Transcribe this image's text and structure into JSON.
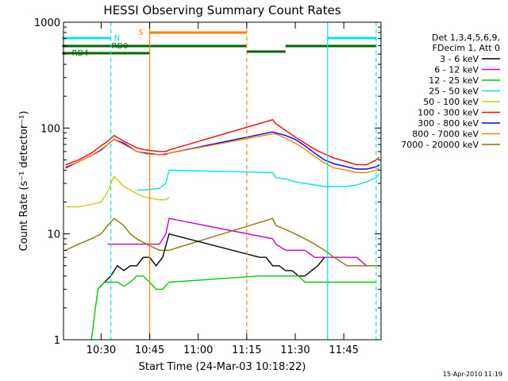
{
  "chart_data": {
    "type": "line",
    "title": "HESSI Observing Summary Count Rates",
    "xlabel": "Start Time (24-Mar-03 10:18:22)",
    "ylabel": "Count Rate (s⁻¹ detector⁻¹)",
    "y_scale": "log",
    "ylim": [
      1,
      1000
    ],
    "xlim": [
      "10:18:22",
      "11:56:30"
    ],
    "x_ticks": [
      "10:30",
      "10:45",
      "11:00",
      "11:15",
      "11:30",
      "11:45"
    ],
    "y_ticks": [
      "1",
      "10",
      "100",
      "1000"
    ],
    "legend_header": [
      "Det 1,3,4,5,6,9,",
      "FDecim 1, Att 0"
    ],
    "footer_date": "15-Apr-2010 11:19",
    "x_sample_times": [
      "10:19",
      "10:23",
      "10:27",
      "10:30",
      "10:32",
      "10:34",
      "10:37",
      "10:39",
      "10:41",
      "10:44",
      "10:48",
      "10:50",
      "10:51",
      "11:23",
      "11:24",
      "11:27",
      "11:30",
      "11:33",
      "11:36",
      "11:39",
      "11:42",
      "11:46",
      "11:49",
      "11:52",
      "11:55",
      "11:56"
    ],
    "series": [
      {
        "name": "3 - 6 keV",
        "color": "#000000",
        "values": [
          null,
          null,
          null,
          null,
          null,
          null,
          null,
          null,
          null,
          null,
          null,
          null,
          null,
          null,
          null,
          null,
          null,
          null,
          null,
          null,
          null,
          null,
          null,
          null,
          null,
          null
        ]
      },
      {
        "name": "6 - 12 keV",
        "color": "#cc00cc",
        "values": [
          null,
          null,
          null,
          null,
          8,
          8,
          8,
          8,
          8,
          8,
          8,
          10,
          14,
          9,
          8,
          7,
          7,
          7,
          6,
          6,
          6,
          6,
          6,
          5,
          5,
          5
        ]
      },
      {
        "name": "12 - 25 keV",
        "color": "#00cc00",
        "values": [
          null,
          null,
          null,
          null,
          null,
          null,
          null,
          null,
          null,
          null,
          null,
          null,
          null,
          null,
          null,
          null,
          null,
          null,
          null,
          null,
          null,
          null,
          null,
          null,
          null,
          null
        ]
      },
      {
        "name": "25 - 50 keV",
        "color": "#00e5e5",
        "values": [
          null,
          null,
          null,
          null,
          null,
          null,
          null,
          null,
          26,
          26,
          27,
          30,
          40,
          38,
          34,
          33,
          31,
          30,
          29,
          28,
          28,
          28,
          29,
          31,
          34,
          37
        ]
      },
      {
        "name": "50 - 100 keV",
        "color": "#cccc00",
        "values": [
          18,
          18,
          19,
          20,
          25,
          35,
          28,
          26,
          24,
          22,
          21,
          21,
          22,
          null,
          null,
          null,
          null,
          null,
          null,
          null,
          null,
          null,
          null,
          null,
          null,
          null
        ]
      },
      {
        "name": "100 - 300 keV",
        "color": "#ff0000",
        "values": [
          45,
          50,
          58,
          68,
          75,
          85,
          75,
          70,
          65,
          62,
          60,
          60,
          62,
          120,
          110,
          95,
          82,
          72,
          63,
          57,
          52,
          48,
          45,
          45,
          50,
          53
        ]
      },
      {
        "name": "300 - 800 keV",
        "color": "#0000ff",
        "values": [
          42,
          48,
          55,
          62,
          70,
          78,
          72,
          66,
          60,
          58,
          56,
          57,
          58,
          92,
          90,
          85,
          78,
          68,
          58,
          50,
          46,
          43,
          41,
          41,
          43,
          45
        ]
      },
      {
        "name": "800 - 7000 keV",
        "color": "#ff8000",
        "values": [
          43,
          48,
          55,
          63,
          70,
          78,
          70,
          65,
          60,
          57,
          56,
          56,
          58,
          88,
          88,
          80,
          72,
          63,
          54,
          47,
          42,
          40,
          38,
          38,
          40,
          42
        ]
      },
      {
        "name": "7000 - 20000 keV",
        "color": "#8b7500",
        "values": [
          7,
          8,
          9,
          10,
          12,
          14,
          12,
          10,
          9,
          8,
          7,
          7,
          7,
          14,
          12,
          11,
          10,
          9,
          8,
          7,
          6,
          5,
          5,
          5,
          5,
          5
        ]
      }
    ],
    "noise_series": [
      {
        "name": "3 - 6 keV",
        "color": "#000000",
        "sample_times": [
          "10:29",
          "10:31",
          "10:33",
          "10:35",
          "10:37",
          "10:39",
          "10:41",
          "10:43",
          "10:45",
          "10:47",
          "10:49",
          "10:51",
          "11:19",
          "11:21",
          "11:23",
          "11:25",
          "11:27",
          "11:29",
          "11:31",
          "11:33",
          "11:35",
          "11:37",
          "11:39"
        ],
        "values": [
          3,
          3.5,
          4,
          5,
          4.5,
          5,
          5,
          6,
          6,
          5,
          6,
          10,
          6,
          6,
          5,
          5,
          4.5,
          4.5,
          4,
          4,
          4.5,
          5,
          6
        ]
      },
      {
        "name": "12 - 25 keV",
        "color": "#00cc00",
        "sample_times": [
          "10:27",
          "10:29",
          "10:31",
          "10:33",
          "10:35",
          "10:37",
          "10:39",
          "10:41",
          "10:43",
          "10:45",
          "10:47",
          "10:49",
          "10:51",
          "11:19",
          "11:21",
          "11:23",
          "11:25",
          "11:27",
          "11:29",
          "11:31",
          "11:33",
          "11:35",
          "11:37",
          "11:39",
          "11:41",
          "11:43",
          "11:45",
          "11:47",
          "11:49",
          "11:51",
          "11:53",
          "11:55"
        ],
        "values": [
          1,
          3,
          3.5,
          3.5,
          3.5,
          3.2,
          3.5,
          4,
          4,
          3.5,
          3,
          3,
          3.5,
          4,
          4,
          4,
          4,
          4,
          4,
          4,
          3.5,
          3.5,
          3.5,
          3.5,
          3.5,
          3.5,
          3.5,
          3.5,
          3.5,
          3.5,
          3.5,
          3.5
        ]
      }
    ],
    "annotations": {
      "N": [
        "10:18",
        "10:33",
        "11:40",
        "11:55"
      ],
      "RD0": [
        "10:18",
        "11:15",
        "11:15",
        "11:27",
        "11:27",
        "11:55"
      ],
      "RD4": [
        "10:18",
        "10:45"
      ],
      "S": [
        "10:45",
        "11:15"
      ]
    },
    "grid": false,
    "legend_position": "right"
  }
}
